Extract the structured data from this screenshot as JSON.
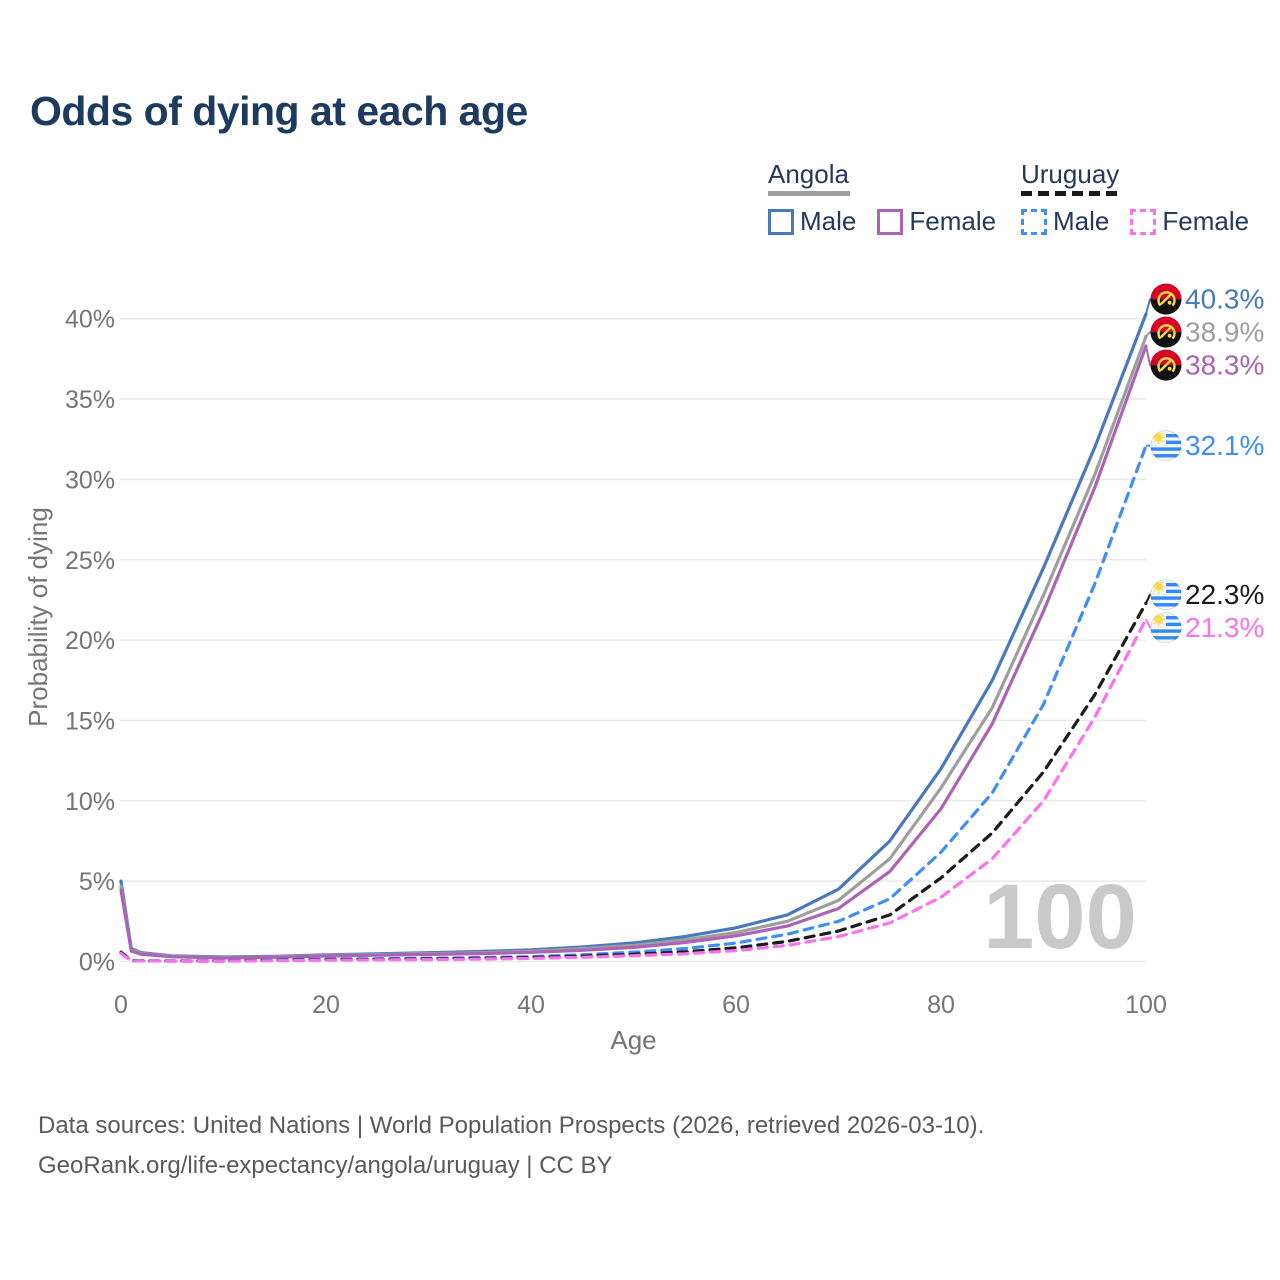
{
  "title": "Odds of dying at each age",
  "legend": {
    "groups": [
      {
        "country": "Angola",
        "style": "solid",
        "underline_color_key": "angola_both",
        "items": [
          {
            "label": "Male",
            "color_key": "angola_male",
            "dashed": false
          },
          {
            "label": "Female",
            "color_key": "angola_female",
            "dashed": false
          }
        ]
      },
      {
        "country": "Uruguay",
        "style": "dashed",
        "underline_color_key": "uruguay_both",
        "items": [
          {
            "label": "Male",
            "color_key": "uruguay_male",
            "dashed": true
          },
          {
            "label": "Female",
            "color_key": "uruguay_female",
            "dashed": true
          }
        ]
      }
    ]
  },
  "colors": {
    "angola_male": "#4878bd",
    "angola_both": "#9e9e9e",
    "angola_female": "#ac62b5",
    "uruguay_male": "#3f8df6",
    "uruguay_both": "#1b1b1b",
    "uruguay_female": "#ff70ee",
    "title_text": "#1d3a5f",
    "legend_text": "#24395b",
    "axis_text": "#757575",
    "grid": "#e9e9e9",
    "watermark": "#c9c9c9",
    "footer_text": "#5a5a5a",
    "flag_red": "#d80027",
    "flag_black": "#111111",
    "flag_yellow": "#ffda44",
    "flag_blue": "#338af3",
    "flag_white": "#f4f6f8"
  },
  "chart_data": {
    "type": "line",
    "title": "Odds of dying at each age",
    "xlabel": "Age",
    "ylabel": "Probability of dying",
    "xlim": [
      0,
      100
    ],
    "ylim": [
      0,
      40
    ],
    "xticks": [
      0,
      20,
      40,
      60,
      80,
      100
    ],
    "yticks": [
      0,
      5,
      10,
      15,
      20,
      25,
      30,
      35,
      40
    ],
    "ytick_suffix": "%",
    "grid": "horizontal",
    "legend_position": "top-right",
    "watermark": "100",
    "x": [
      0,
      1,
      2,
      5,
      10,
      15,
      20,
      25,
      30,
      35,
      40,
      45,
      50,
      55,
      60,
      65,
      70,
      75,
      80,
      85,
      90,
      95,
      100
    ],
    "series": [
      {
        "id": "angola-male",
        "country": "Angola",
        "sex": "Male",
        "color_key": "angola_male",
        "line_style": "solid",
        "flag": "angola",
        "end_label": "40.3%",
        "end_value": 40.3,
        "values": [
          5.0,
          0.8,
          0.55,
          0.35,
          0.28,
          0.32,
          0.42,
          0.48,
          0.55,
          0.62,
          0.72,
          0.9,
          1.15,
          1.55,
          2.1,
          2.9,
          4.5,
          7.5,
          12.0,
          17.5,
          24.5,
          32.0,
          40.3
        ]
      },
      {
        "id": "angola-both",
        "country": "Angola",
        "sex": "Both sexes",
        "color_key": "angola_both",
        "line_style": "solid",
        "flag": "angola",
        "end_label": "38.9%",
        "end_value": 38.9,
        "values": [
          4.7,
          0.72,
          0.5,
          0.32,
          0.25,
          0.29,
          0.38,
          0.43,
          0.49,
          0.55,
          0.64,
          0.8,
          1.0,
          1.35,
          1.8,
          2.5,
          3.8,
          6.4,
          10.8,
          15.8,
          22.8,
          30.3,
          38.9
        ]
      },
      {
        "id": "angola-female",
        "country": "Angola",
        "sex": "Female",
        "color_key": "angola_female",
        "line_style": "solid",
        "flag": "angola",
        "end_label": "38.3%",
        "end_value": 38.3,
        "values": [
          4.45,
          0.65,
          0.45,
          0.29,
          0.22,
          0.26,
          0.34,
          0.39,
          0.44,
          0.49,
          0.57,
          0.7,
          0.88,
          1.18,
          1.6,
          2.2,
          3.3,
          5.6,
          9.5,
          14.8,
          21.8,
          29.5,
          38.3
        ]
      },
      {
        "id": "uruguay-male",
        "country": "Uruguay",
        "sex": "Male",
        "color_key": "uruguay_male",
        "line_style": "dashed",
        "flag": "uruguay",
        "end_label": "32.1%",
        "end_value": 32.1,
        "values": [
          0.6,
          0.06,
          0.05,
          0.04,
          0.04,
          0.1,
          0.15,
          0.17,
          0.2,
          0.24,
          0.3,
          0.42,
          0.58,
          0.8,
          1.15,
          1.7,
          2.5,
          3.9,
          6.8,
          10.5,
          16.0,
          23.5,
          32.1
        ]
      },
      {
        "id": "uruguay-both",
        "country": "Uruguay",
        "sex": "Both sexes",
        "color_key": "uruguay_both",
        "line_style": "dashed",
        "flag": "uruguay",
        "end_label": "22.3%",
        "end_value": 22.3,
        "values": [
          0.55,
          0.05,
          0.04,
          0.03,
          0.03,
          0.07,
          0.11,
          0.13,
          0.16,
          0.19,
          0.24,
          0.33,
          0.45,
          0.6,
          0.85,
          1.25,
          1.9,
          2.9,
          5.2,
          8.0,
          11.8,
          16.6,
          22.3
        ]
      },
      {
        "id": "uruguay-female",
        "country": "Uruguay",
        "sex": "Female",
        "color_key": "uruguay_female",
        "line_style": "dashed",
        "flag": "uruguay",
        "end_label": "21.3%",
        "end_value": 21.3,
        "values": [
          0.5,
          0.045,
          0.035,
          0.025,
          0.025,
          0.05,
          0.08,
          0.1,
          0.12,
          0.15,
          0.19,
          0.26,
          0.36,
          0.48,
          0.68,
          1.0,
          1.55,
          2.4,
          4.0,
          6.4,
          10.0,
          15.2,
          21.3
        ]
      }
    ]
  },
  "footer": {
    "line1": "Data sources: United Nations | World Population Prospects (2026, retrieved 2026-03-10).",
    "line2": "GeoRank.org/life-expectancy/angola/uruguay | CC BY"
  }
}
